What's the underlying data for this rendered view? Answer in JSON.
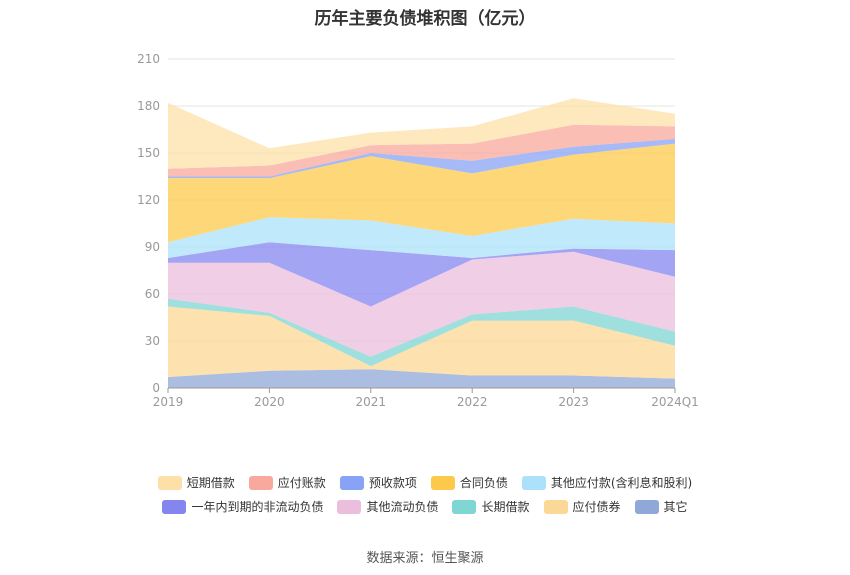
{
  "title": "历年主要负债堆积图（亿元）",
  "source": "数据来源：恒生聚源",
  "chart_data": {
    "type": "area",
    "stacked": true,
    "categories": [
      "2019",
      "2020",
      "2021",
      "2022",
      "2023",
      "2024Q1"
    ],
    "yticks": [
      "0",
      "30",
      "60",
      "90",
      "120",
      "150",
      "180",
      "210"
    ],
    "ylim": [
      0,
      210
    ],
    "grid": true,
    "legend_position": "bottom",
    "series": [
      {
        "name": "其它",
        "color": "#8fa8d8",
        "values": [
          7,
          11,
          12,
          8,
          8,
          6
        ]
      },
      {
        "name": "应付债券",
        "color": "#fcd896",
        "values": [
          45,
          35,
          2,
          35,
          35,
          21
        ]
      },
      {
        "name": "长期借款",
        "color": "#7fd6d3",
        "values": [
          5,
          2,
          6,
          4,
          9,
          9
        ]
      },
      {
        "name": "其他流动负债",
        "color": "#ebbedd",
        "values": [
          23,
          32,
          32,
          35,
          35,
          35
        ]
      },
      {
        "name": "一年内到期的非流动负债",
        "color": "#8585f0",
        "values": [
          3,
          13,
          36,
          1,
          2,
          17
        ]
      },
      {
        "name": "其他应付款(含利息和股利)",
        "color": "#ace1fb",
        "values": [
          10,
          16,
          19,
          14,
          19,
          17
        ]
      },
      {
        "name": "合同负债",
        "color": "#fdc94c",
        "values": [
          41,
          25,
          41,
          40,
          41,
          51
        ]
      },
      {
        "name": "预收款项",
        "color": "#88a3f5",
        "values": [
          1,
          1,
          2,
          8,
          5,
          3
        ]
      },
      {
        "name": "应付账款",
        "color": "#f8a89c",
        "values": [
          5,
          7,
          5,
          11,
          14,
          8
        ]
      },
      {
        "name": "短期借款",
        "color": "#fde0a8",
        "values": [
          42,
          11,
          8,
          11,
          17,
          8
        ]
      }
    ]
  },
  "legend": {
    "row1": [
      "短期借款",
      "应付账款",
      "预收款项",
      "合同负债",
      "其他应付款(含利息和股利)"
    ],
    "row2": [
      "一年内到期的非流动负债",
      "其他流动负债",
      "长期借款",
      "应付债券",
      "其它"
    ]
  }
}
